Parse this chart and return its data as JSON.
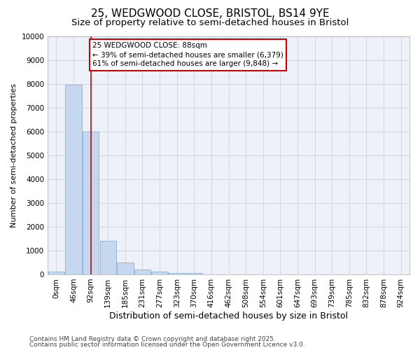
{
  "title1": "25, WEDGWOOD CLOSE, BRISTOL, BS14 9YE",
  "title2": "Size of property relative to semi-detached houses in Bristol",
  "xlabel": "Distribution of semi-detached houses by size in Bristol",
  "ylabel": "Number of semi-detached properties",
  "categories": [
    "0sqm",
    "46sqm",
    "92sqm",
    "139sqm",
    "185sqm",
    "231sqm",
    "277sqm",
    "323sqm",
    "370sqm",
    "416sqm",
    "462sqm",
    "508sqm",
    "554sqm",
    "601sqm",
    "647sqm",
    "693sqm",
    "739sqm",
    "785sqm",
    "832sqm",
    "878sqm",
    "924sqm"
  ],
  "values": [
    105,
    7950,
    6000,
    1400,
    500,
    200,
    130,
    70,
    55,
    5,
    2,
    1,
    0,
    0,
    0,
    0,
    0,
    0,
    0,
    0,
    0
  ],
  "bar_color": "#c5d8ef",
  "bar_edge_color": "#8ab0d4",
  "vline_x": 2,
  "vline_color": "#cc0000",
  "ann_line1": "25 WEDGWOOD CLOSE: 88sqm",
  "ann_line2": "← 39% of semi-detached houses are smaller (6,379)",
  "ann_line3": "61% of semi-detached houses are larger (9,848) →",
  "ann_box_color": "#cc0000",
  "ylim": [
    0,
    10000
  ],
  "yticks": [
    0,
    1000,
    2000,
    3000,
    4000,
    5000,
    6000,
    7000,
    8000,
    9000,
    10000
  ],
  "grid_color": "#d0d8e8",
  "plot_bg": "#eef2f8",
  "fig_bg": "#ffffff",
  "footer1": "Contains HM Land Registry data © Crown copyright and database right 2025.",
  "footer2": "Contains public sector information licensed under the Open Government Licence v3.0.",
  "title1_fontsize": 11,
  "title2_fontsize": 9.5,
  "xlabel_fontsize": 9,
  "ylabel_fontsize": 8,
  "tick_fontsize": 7.5,
  "ann_fontsize": 7.5,
  "footer_fontsize": 6.5
}
